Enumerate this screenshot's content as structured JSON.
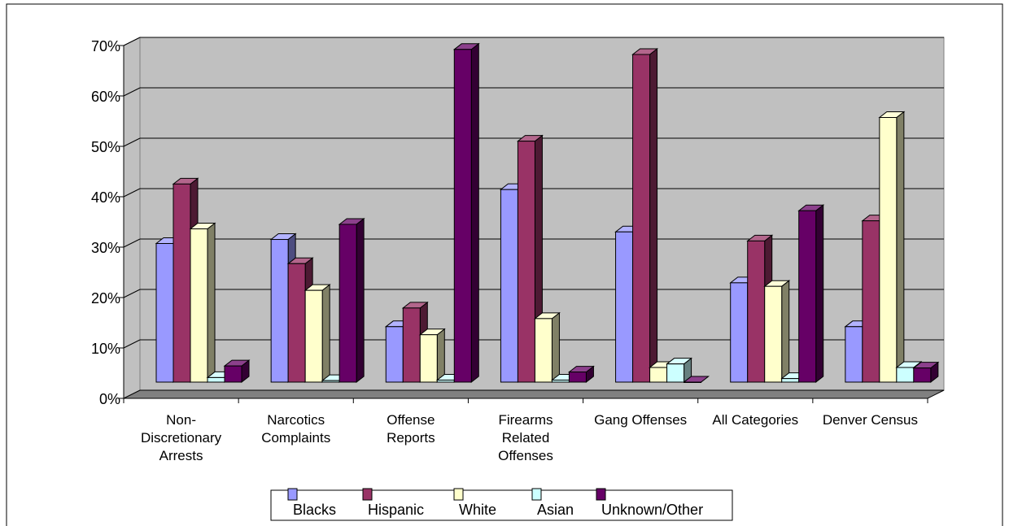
{
  "chart_data": {
    "type": "bar",
    "categories": [
      [
        "Non-",
        "Discretionary",
        "Arrests"
      ],
      [
        "Narcotics",
        "Complaints"
      ],
      [
        "Offense",
        "Reports"
      ],
      [
        "Firearms",
        "Related",
        "Offenses"
      ],
      [
        "Gang Offenses"
      ],
      [
        "All Categories"
      ],
      [
        "Denver Census"
      ]
    ],
    "series": [
      {
        "name": "Blacks",
        "color": "#9999ff",
        "values": [
          27.5,
          28.3,
          11.0,
          38.2,
          29.8,
          19.7,
          11.0
        ]
      },
      {
        "name": "Hispanic",
        "color": "#993366",
        "values": [
          39.3,
          23.5,
          14.7,
          47.8,
          65.0,
          28.0,
          32.0
        ]
      },
      {
        "name": "White",
        "color": "#ffffcc",
        "values": [
          30.4,
          18.2,
          9.4,
          12.6,
          2.9,
          19.0,
          52.5
        ]
      },
      {
        "name": "Asian",
        "color": "#ccffff",
        "values": [
          0.9,
          0.3,
          0.4,
          0.4,
          3.6,
          0.7,
          2.9
        ]
      },
      {
        "name": "Unknown/Other",
        "color": "#660066",
        "values": [
          3.2,
          31.3,
          66.0,
          2.0,
          0.0,
          34.0,
          2.8
        ]
      }
    ],
    "yticks": [
      "0%",
      "10%",
      "20%",
      "30%",
      "40%",
      "50%",
      "60%",
      "70%"
    ],
    "ylim": [
      0,
      70
    ],
    "legend_position": "bottom",
    "grid": true
  }
}
